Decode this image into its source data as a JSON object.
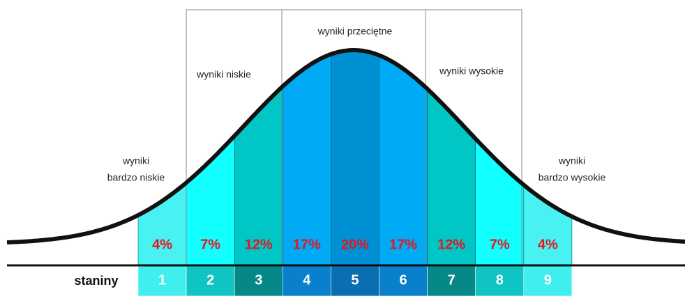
{
  "axis_label": "staniny",
  "groups": {
    "very_low": [
      "wyniki",
      "bardzo niskie"
    ],
    "low": "wyniki niskie",
    "average": "wyniki przeciętne",
    "high": "wyniki wysokie",
    "very_high": [
      "wyniki",
      "bardzo wysokie"
    ]
  },
  "stanines": [
    {
      "label": "1",
      "percent": "4%"
    },
    {
      "label": "2",
      "percent": "7%"
    },
    {
      "label": "3",
      "percent": "12%"
    },
    {
      "label": "4",
      "percent": "17%"
    },
    {
      "label": "5",
      "percent": "20%"
    },
    {
      "label": "6",
      "percent": "17%"
    },
    {
      "label": "7",
      "percent": "12%"
    },
    {
      "label": "8",
      "percent": "7%"
    },
    {
      "label": "9",
      "percent": "4%"
    }
  ]
}
